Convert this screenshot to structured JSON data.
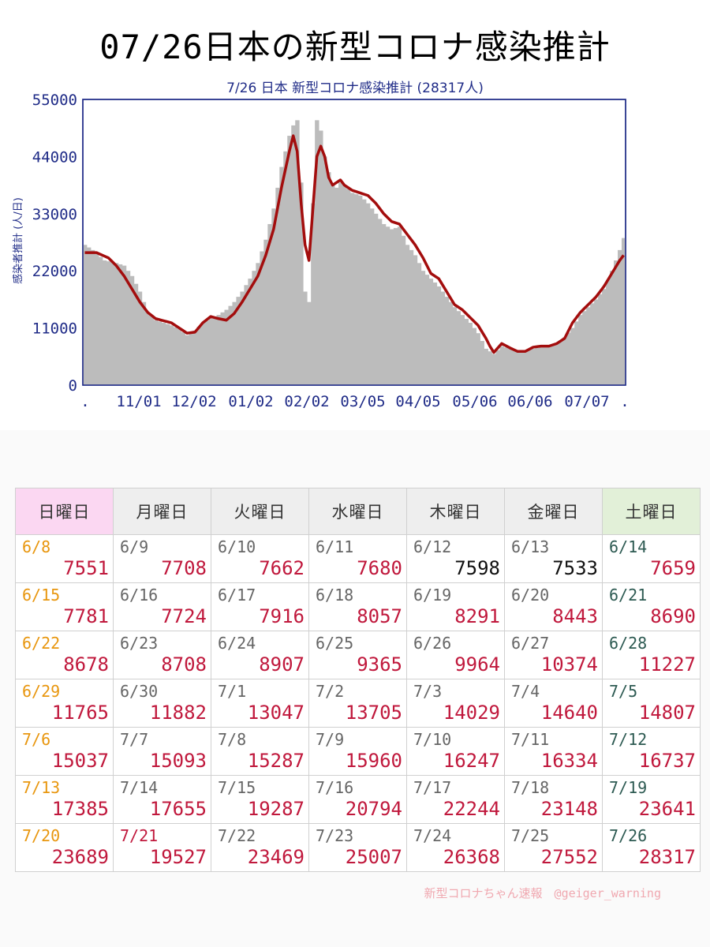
{
  "title": "07/26日本の新型コロナ感染推計",
  "credit": "新型コロナちゃん速報　@geiger_warning",
  "chart_data": {
    "type": "bar",
    "title": "7/26 日本 新型コロナ感染推計 (28317人)",
    "ylabel": "感染者推計 (人/日)",
    "xlabel": "",
    "ylim": [
      0,
      55000
    ],
    "yticks": [
      "55000",
      "44000",
      "33000",
      "22000",
      "11000",
      "0"
    ],
    "xticks": [
      ".",
      "11/01",
      "12/02",
      "01/02",
      "02/02",
      "03/05",
      "04/05",
      "05/06",
      "06/06",
      "07/07",
      "."
    ],
    "grid": false,
    "legend": "none",
    "series": [
      {
        "name": "daily estimate (bars)",
        "kind": "bar",
        "anchors": [
          [
            0,
            27000
          ],
          [
            2,
            26000
          ],
          [
            5,
            24000
          ],
          [
            8,
            23500
          ],
          [
            10,
            23000
          ],
          [
            12,
            21000
          ],
          [
            14,
            18000
          ],
          [
            16,
            14000
          ],
          [
            18,
            12500
          ],
          [
            20,
            12000
          ],
          [
            22,
            11500
          ],
          [
            24,
            10800
          ],
          [
            26,
            9600
          ],
          [
            28,
            10500
          ],
          [
            30,
            12000
          ],
          [
            32,
            12800
          ],
          [
            34,
            13500
          ],
          [
            36,
            14500
          ],
          [
            38,
            16000
          ],
          [
            40,
            18000
          ],
          [
            42,
            20500
          ],
          [
            44,
            23500
          ],
          [
            46,
            28000
          ],
          [
            48,
            34000
          ],
          [
            50,
            42000
          ],
          [
            52,
            48000
          ],
          [
            53,
            50000
          ],
          [
            54,
            51000
          ],
          [
            55,
            39000
          ],
          [
            56,
            18000
          ],
          [
            57,
            16000
          ],
          [
            58,
            35000
          ],
          [
            59,
            51000
          ],
          [
            60,
            49000
          ],
          [
            61,
            44000
          ],
          [
            62,
            41000
          ],
          [
            63,
            38500
          ],
          [
            64,
            38000
          ],
          [
            65,
            39000
          ],
          [
            66,
            38500
          ],
          [
            68,
            37000
          ],
          [
            70,
            36500
          ],
          [
            72,
            35000
          ],
          [
            74,
            33000
          ],
          [
            76,
            31000
          ],
          [
            78,
            30000
          ],
          [
            80,
            30500
          ],
          [
            82,
            27000
          ],
          [
            84,
            25000
          ],
          [
            86,
            22000
          ],
          [
            88,
            20500
          ],
          [
            90,
            19000
          ],
          [
            92,
            17000
          ],
          [
            94,
            15000
          ],
          [
            96,
            13500
          ],
          [
            98,
            12000
          ],
          [
            100,
            10000
          ],
          [
            102,
            7000
          ],
          [
            104,
            6000
          ],
          [
            106,
            7500
          ],
          [
            108,
            7000
          ],
          [
            110,
            6500
          ],
          [
            112,
            6500
          ],
          [
            114,
            7000
          ],
          [
            116,
            7300
          ],
          [
            118,
            7500
          ],
          [
            120,
            8000
          ],
          [
            122,
            9200
          ],
          [
            124,
            11000
          ],
          [
            126,
            13500
          ],
          [
            128,
            15000
          ],
          [
            130,
            16500
          ],
          [
            132,
            18500
          ],
          [
            134,
            22000
          ],
          [
            136,
            26000
          ],
          [
            137,
            28317
          ]
        ]
      },
      {
        "name": "7-day average (line)",
        "kind": "line",
        "anchors": [
          [
            0,
            25500
          ],
          [
            3,
            25500
          ],
          [
            6,
            24500
          ],
          [
            8,
            23000
          ],
          [
            10,
            21000
          ],
          [
            12,
            18500
          ],
          [
            14,
            16000
          ],
          [
            16,
            14000
          ],
          [
            18,
            12800
          ],
          [
            20,
            12400
          ],
          [
            22,
            12000
          ],
          [
            24,
            11000
          ],
          [
            26,
            10000
          ],
          [
            28,
            10200
          ],
          [
            30,
            12000
          ],
          [
            32,
            13200
          ],
          [
            34,
            12800
          ],
          [
            36,
            12500
          ],
          [
            38,
            13800
          ],
          [
            40,
            16000
          ],
          [
            42,
            18500
          ],
          [
            44,
            21000
          ],
          [
            46,
            25000
          ],
          [
            48,
            30000
          ],
          [
            50,
            38000
          ],
          [
            52,
            45000
          ],
          [
            53,
            48000
          ],
          [
            54,
            45000
          ],
          [
            55,
            35000
          ],
          [
            56,
            27000
          ],
          [
            57,
            24000
          ],
          [
            58,
            34000
          ],
          [
            59,
            44000
          ],
          [
            60,
            46000
          ],
          [
            61,
            44000
          ],
          [
            62,
            40000
          ],
          [
            63,
            38500
          ],
          [
            64,
            39000
          ],
          [
            65,
            39500
          ],
          [
            66,
            38500
          ],
          [
            68,
            37500
          ],
          [
            70,
            37000
          ],
          [
            72,
            36500
          ],
          [
            74,
            35000
          ],
          [
            76,
            33000
          ],
          [
            78,
            31500
          ],
          [
            80,
            31000
          ],
          [
            82,
            29000
          ],
          [
            84,
            27000
          ],
          [
            86,
            24500
          ],
          [
            88,
            21500
          ],
          [
            90,
            20500
          ],
          [
            92,
            18000
          ],
          [
            94,
            15500
          ],
          [
            96,
            14500
          ],
          [
            98,
            13000
          ],
          [
            100,
            11500
          ],
          [
            102,
            9000
          ],
          [
            103,
            7500
          ],
          [
            104,
            6300
          ],
          [
            106,
            8000
          ],
          [
            108,
            7200
          ],
          [
            110,
            6500
          ],
          [
            112,
            6500
          ],
          [
            114,
            7300
          ],
          [
            116,
            7500
          ],
          [
            118,
            7500
          ],
          [
            120,
            8000
          ],
          [
            122,
            9000
          ],
          [
            124,
            12000
          ],
          [
            126,
            14000
          ],
          [
            128,
            15500
          ],
          [
            130,
            17000
          ],
          [
            132,
            19000
          ],
          [
            134,
            21500
          ],
          [
            136,
            24000
          ],
          [
            137,
            25000
          ]
        ]
      }
    ]
  },
  "calendar": {
    "headers": [
      "日曜日",
      "月曜日",
      "火曜日",
      "水曜日",
      "木曜日",
      "金曜日",
      "土曜日"
    ],
    "weeks": [
      [
        {
          "date": "6/8",
          "value": "7551"
        },
        {
          "date": "6/9",
          "value": "7708"
        },
        {
          "date": "6/10",
          "value": "7662"
        },
        {
          "date": "6/11",
          "value": "7680"
        },
        {
          "date": "6/12",
          "value": "7598"
        },
        {
          "date": "6/13",
          "value": "7533"
        },
        {
          "date": "6/14",
          "value": "7659"
        }
      ],
      [
        {
          "date": "6/15",
          "value": "7781"
        },
        {
          "date": "6/16",
          "value": "7724"
        },
        {
          "date": "6/17",
          "value": "7916"
        },
        {
          "date": "6/18",
          "value": "8057"
        },
        {
          "date": "6/19",
          "value": "8291"
        },
        {
          "date": "6/20",
          "value": "8443"
        },
        {
          "date": "6/21",
          "value": "8690"
        }
      ],
      [
        {
          "date": "6/22",
          "value": "8678"
        },
        {
          "date": "6/23",
          "value": "8708"
        },
        {
          "date": "6/24",
          "value": "8907"
        },
        {
          "date": "6/25",
          "value": "9365"
        },
        {
          "date": "6/26",
          "value": "9964"
        },
        {
          "date": "6/27",
          "value": "10374"
        },
        {
          "date": "6/28",
          "value": "11227"
        }
      ],
      [
        {
          "date": "6/29",
          "value": "11765"
        },
        {
          "date": "6/30",
          "value": "11882"
        },
        {
          "date": "7/1",
          "value": "13047"
        },
        {
          "date": "7/2",
          "value": "13705"
        },
        {
          "date": "7/3",
          "value": "14029"
        },
        {
          "date": "7/4",
          "value": "14640"
        },
        {
          "date": "7/5",
          "value": "14807"
        }
      ],
      [
        {
          "date": "7/6",
          "value": "15037"
        },
        {
          "date": "7/7",
          "value": "15093"
        },
        {
          "date": "7/8",
          "value": "15287"
        },
        {
          "date": "7/9",
          "value": "15960"
        },
        {
          "date": "7/10",
          "value": "16247"
        },
        {
          "date": "7/11",
          "value": "16334"
        },
        {
          "date": "7/12",
          "value": "16737"
        }
      ],
      [
        {
          "date": "7/13",
          "value": "17385"
        },
        {
          "date": "7/14",
          "value": "17655"
        },
        {
          "date": "7/15",
          "value": "19287"
        },
        {
          "date": "7/16",
          "value": "20794"
        },
        {
          "date": "7/17",
          "value": "22244"
        },
        {
          "date": "7/18",
          "value": "23148"
        },
        {
          "date": "7/19",
          "value": "23641"
        }
      ],
      [
        {
          "date": "7/20",
          "value": "23689"
        },
        {
          "date": "7/21",
          "value": "19527"
        },
        {
          "date": "7/22",
          "value": "23469"
        },
        {
          "date": "7/23",
          "value": "25007"
        },
        {
          "date": "7/24",
          "value": "26368"
        },
        {
          "date": "7/25",
          "value": "27552"
        },
        {
          "date": "7/26",
          "value": "28317"
        }
      ]
    ],
    "holiday_dates": [
      "7/21"
    ],
    "black_value_dates": [
      "6/12",
      "6/13"
    ]
  }
}
